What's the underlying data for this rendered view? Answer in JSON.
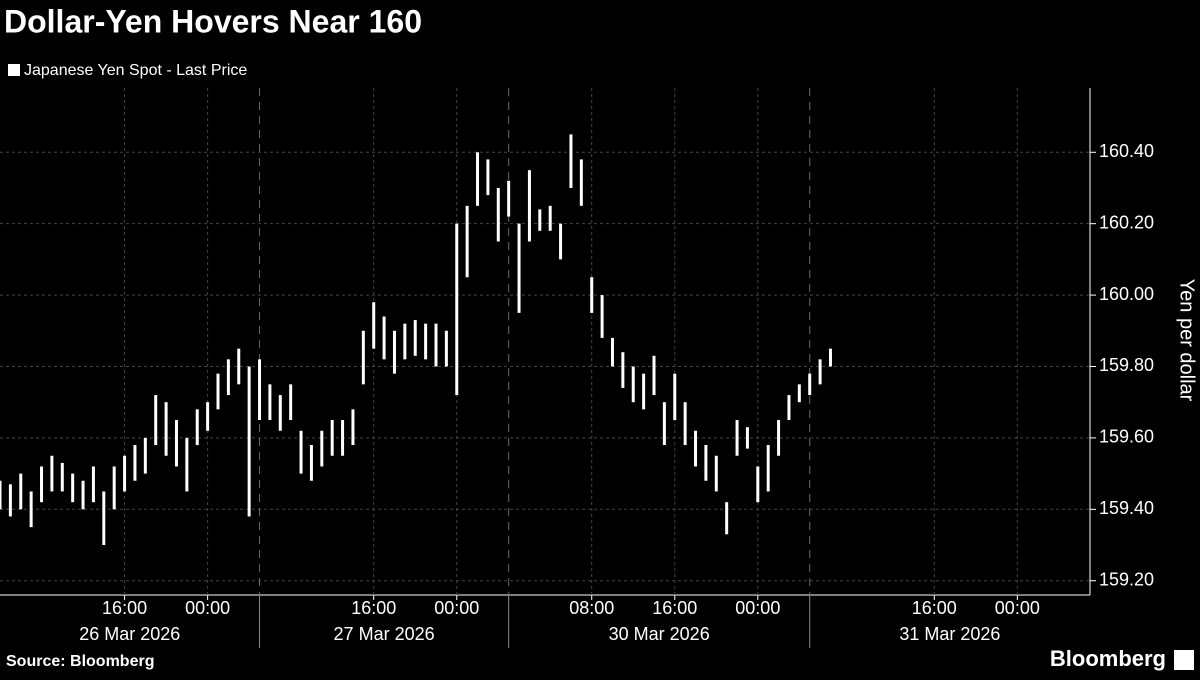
{
  "chart_data": {
    "type": "range",
    "title": "Dollar-Yen Hovers Near 160",
    "y_label": "Yen per dollar",
    "source": "Source: Bloomberg",
    "logo": "Bloomberg",
    "grid": true,
    "xlim": [
      0,
      105
    ],
    "xticks": [
      {
        "value": 12,
        "label": "16:00"
      },
      {
        "value": 20,
        "label": "00:00"
      },
      {
        "value": 36,
        "label": "16:00"
      },
      {
        "value": 44,
        "label": "00:00"
      },
      {
        "value": 57,
        "label": "08:00"
      },
      {
        "value": 65,
        "label": "16:00"
      },
      {
        "value": 73,
        "label": "00:00"
      },
      {
        "value": 90,
        "label": "16:00"
      },
      {
        "value": 98,
        "label": "00:00"
      }
    ],
    "x_groups": [
      {
        "label": "26 Mar 2026",
        "range": [
          0,
          25
        ]
      },
      {
        "label": "27 Mar 2026",
        "range": [
          25,
          49
        ]
      },
      {
        "label": "30 Mar 2026",
        "range": [
          49,
          78
        ]
      },
      {
        "label": "31 Mar 2026",
        "range": [
          78,
          105
        ]
      }
    ],
    "ylim": [
      159.16,
      160.58
    ],
    "yticks": [
      {
        "value": 159.2,
        "label": "159.20"
      },
      {
        "value": 159.4,
        "label": "159.40"
      },
      {
        "value": 159.6,
        "label": "159.60"
      },
      {
        "value": 159.8,
        "label": "159.80"
      },
      {
        "value": 160.0,
        "label": "160.00"
      },
      {
        "value": 160.2,
        "label": "160.20"
      },
      {
        "value": 160.4,
        "label": "160.40"
      }
    ],
    "series": [
      {
        "name": "Japanese Yen Spot - Last Price",
        "color": "#ffffff",
        "x": [
          0,
          1,
          2,
          3,
          4,
          5,
          6,
          7,
          8,
          9,
          10,
          11,
          12,
          13,
          14,
          15,
          16,
          17,
          18,
          19,
          20,
          21,
          22,
          23,
          24,
          25,
          26,
          27,
          28,
          29,
          30,
          31,
          32,
          33,
          34,
          35,
          36,
          37,
          38,
          39,
          40,
          41,
          42,
          43,
          44,
          45,
          46,
          47,
          48,
          49,
          50,
          51,
          52,
          53,
          54,
          55,
          56,
          57,
          58,
          59,
          60,
          61,
          62,
          63,
          64,
          65,
          66,
          67,
          68,
          69,
          70,
          71,
          72,
          73,
          74,
          75,
          76,
          77,
          78,
          79,
          80
        ],
        "low": [
          159.4,
          159.38,
          159.4,
          159.35,
          159.42,
          159.45,
          159.45,
          159.42,
          159.4,
          159.42,
          159.3,
          159.4,
          159.45,
          159.48,
          159.5,
          159.58,
          159.55,
          159.52,
          159.45,
          159.58,
          159.62,
          159.68,
          159.72,
          159.75,
          159.38,
          159.65,
          159.65,
          159.62,
          159.65,
          159.5,
          159.48,
          159.52,
          159.55,
          159.55,
          159.58,
          159.75,
          159.85,
          159.82,
          159.78,
          159.82,
          159.83,
          159.82,
          159.8,
          159.8,
          159.72,
          160.05,
          160.25,
          160.28,
          160.15,
          160.22,
          159.95,
          160.15,
          160.18,
          160.18,
          160.1,
          160.3,
          160.25,
          159.95,
          159.88,
          159.8,
          159.74,
          159.7,
          159.68,
          159.72,
          159.58,
          159.65,
          159.58,
          159.52,
          159.48,
          159.45,
          159.33,
          159.55,
          159.57,
          159.42,
          159.45,
          159.55,
          159.65,
          159.7,
          159.72,
          159.75,
          159.8
        ],
        "high": [
          159.48,
          159.47,
          159.5,
          159.45,
          159.52,
          159.55,
          159.53,
          159.5,
          159.48,
          159.52,
          159.45,
          159.52,
          159.55,
          159.58,
          159.6,
          159.72,
          159.7,
          159.65,
          159.6,
          159.68,
          159.7,
          159.78,
          159.82,
          159.85,
          159.8,
          159.82,
          159.75,
          159.72,
          159.75,
          159.62,
          159.58,
          159.62,
          159.65,
          159.65,
          159.68,
          159.9,
          159.98,
          159.94,
          159.9,
          159.92,
          159.93,
          159.92,
          159.92,
          159.9,
          160.2,
          160.25,
          160.4,
          160.38,
          160.3,
          160.32,
          160.2,
          160.35,
          160.24,
          160.25,
          160.2,
          160.45,
          160.38,
          160.05,
          160.0,
          159.88,
          159.84,
          159.8,
          159.78,
          159.83,
          159.7,
          159.78,
          159.7,
          159.62,
          159.58,
          159.55,
          159.42,
          159.65,
          159.63,
          159.52,
          159.58,
          159.65,
          159.72,
          159.75,
          159.78,
          159.82,
          159.85
        ]
      }
    ]
  }
}
